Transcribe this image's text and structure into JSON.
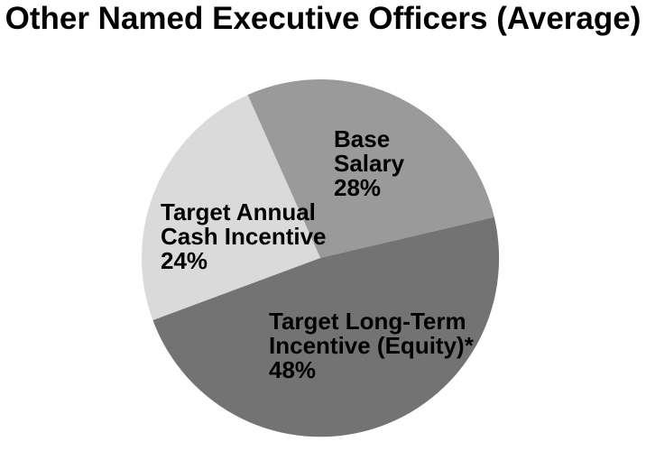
{
  "chart_data": {
    "type": "pie",
    "title": "Other Named Executive Officers (Average)",
    "unit": "%",
    "direction": "clockwise",
    "start_angle_deg": -24,
    "legend": "none",
    "slices": [
      {
        "label": "Base Salary",
        "label_lines": [
          "Base",
          "Salary"
        ],
        "value": 28,
        "pct_label": "28%",
        "color": "#9A9A9A"
      },
      {
        "label": "Target Long-Term Incentive (Equity)*",
        "label_lines": [
          "Target Long-Term",
          "Incentive (Equity)*"
        ],
        "value": 48,
        "pct_label": "48%",
        "color": "#737373"
      },
      {
        "label": "Target Annual Cash Incentive",
        "label_lines": [
          "Target Annual",
          "Cash Incentive"
        ],
        "value": 24,
        "pct_label": "24%",
        "color": "#DADADA"
      }
    ],
    "colors": {
      "text": "#000000",
      "background": "#FFFFFF"
    }
  }
}
